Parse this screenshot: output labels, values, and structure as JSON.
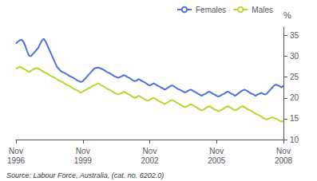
{
  "chart_data": {
    "type": "line",
    "y_label": "%",
    "annotation": "Source: Labour Force, Australia, (cat. no. 6202.0)",
    "ylim": [
      10,
      37
    ],
    "yticks": [
      10,
      15,
      20,
      25,
      30,
      35
    ],
    "grid": false,
    "legend": "upper right",
    "categories": [
      "Nov\n1996",
      null,
      null,
      null,
      null,
      null,
      null,
      null,
      null,
      null,
      null,
      null,
      null,
      null,
      null,
      null,
      null,
      null,
      null,
      null,
      null,
      null,
      null,
      null,
      null,
      null,
      null,
      null,
      null,
      null,
      null,
      null,
      null,
      null,
      null,
      null,
      "Nov\n1999",
      null,
      null,
      null,
      null,
      null,
      null,
      null,
      null,
      null,
      null,
      null,
      null,
      null,
      null,
      null,
      null,
      null,
      null,
      null,
      null,
      null,
      null,
      null,
      null,
      null,
      null,
      null,
      null,
      null,
      null,
      null,
      null,
      null,
      null,
      null,
      "Nov\n2002",
      null,
      null,
      null,
      null,
      null,
      null,
      null,
      null,
      null,
      null,
      null,
      null,
      null,
      null,
      null,
      null,
      null,
      null,
      null,
      null,
      null,
      null,
      null,
      null,
      null,
      null,
      null,
      null,
      null,
      null,
      null,
      null,
      null,
      null,
      null,
      "Nov\n2005",
      null,
      null,
      null,
      null,
      null,
      null,
      null,
      null,
      null,
      null,
      null,
      null,
      null,
      null,
      null,
      null,
      null,
      null,
      null,
      null,
      null,
      null,
      null,
      null,
      null,
      null,
      null,
      null,
      null,
      null,
      null,
      null,
      null,
      null,
      null,
      "Nov\n2008"
    ],
    "series": [
      {
        "name": "Females",
        "values": [
          33.0,
          33.5,
          33.8,
          34.0,
          33.5,
          32.5,
          31.2,
          30.2,
          30.0,
          30.5,
          31.0,
          31.5,
          32.0,
          33.0,
          33.8,
          34.2,
          33.5,
          32.5,
          31.5,
          30.5,
          29.5,
          28.5,
          27.5,
          27.0,
          26.5,
          26.2,
          26.0,
          25.8,
          25.5,
          25.2,
          25.0,
          24.8,
          24.5,
          24.2,
          24.0,
          23.8,
          24.0,
          24.5,
          25.0,
          25.5,
          26.0,
          26.5,
          27.0,
          27.2,
          27.3,
          27.2,
          27.0,
          26.8,
          26.5,
          26.2,
          26.0,
          25.8,
          25.5,
          25.2,
          25.0,
          24.8,
          25.0,
          25.2,
          25.5,
          25.3,
          25.0,
          24.8,
          24.5,
          24.2,
          24.0,
          24.2,
          24.5,
          24.3,
          24.0,
          23.8,
          23.5,
          23.2,
          23.0,
          23.2,
          23.5,
          23.3,
          23.0,
          22.8,
          22.5,
          22.3,
          22.0,
          22.2,
          22.5,
          22.8,
          23.0,
          22.8,
          22.5,
          22.2,
          22.0,
          21.8,
          21.5,
          21.3,
          21.5,
          21.8,
          22.0,
          21.8,
          21.5,
          21.3,
          21.0,
          20.8,
          20.5,
          20.8,
          21.0,
          21.3,
          21.5,
          21.3,
          21.0,
          20.8,
          20.5,
          20.3,
          20.5,
          20.8,
          21.0,
          21.3,
          21.5,
          21.3,
          21.0,
          20.8,
          20.5,
          20.8,
          21.2,
          21.5,
          21.8,
          22.0,
          21.8,
          21.5,
          21.2,
          21.0,
          20.8,
          20.5,
          20.8,
          21.0,
          21.2,
          21.0,
          20.8,
          21.0,
          21.5,
          22.0,
          22.5,
          23.0,
          23.2,
          23.0,
          22.8,
          22.5,
          23.0
        ]
      },
      {
        "name": "Males",
        "values": [
          27.0,
          27.2,
          27.5,
          27.3,
          27.0,
          26.8,
          26.5,
          26.2,
          26.5,
          26.8,
          27.0,
          27.2,
          27.0,
          26.8,
          26.5,
          26.2,
          26.0,
          25.8,
          25.5,
          25.2,
          25.0,
          24.8,
          24.5,
          24.2,
          24.0,
          23.8,
          23.5,
          23.2,
          23.0,
          22.8,
          22.5,
          22.2,
          22.0,
          21.8,
          21.5,
          21.2,
          21.5,
          21.8,
          22.0,
          22.3,
          22.5,
          22.8,
          23.0,
          23.2,
          23.5,
          23.3,
          23.0,
          22.8,
          22.5,
          22.2,
          22.0,
          21.8,
          21.5,
          21.2,
          21.0,
          20.8,
          21.0,
          21.2,
          21.5,
          21.3,
          21.0,
          20.8,
          20.5,
          20.2,
          20.0,
          20.2,
          20.5,
          20.3,
          20.0,
          19.8,
          19.5,
          19.3,
          19.5,
          19.8,
          20.0,
          19.8,
          19.5,
          19.2,
          19.0,
          18.8,
          18.5,
          18.8,
          19.0,
          19.3,
          19.5,
          19.3,
          19.0,
          18.8,
          18.5,
          18.2,
          18.0,
          17.8,
          18.0,
          18.2,
          18.5,
          18.3,
          18.0,
          17.8,
          17.5,
          17.2,
          17.0,
          17.2,
          17.5,
          17.8,
          18.0,
          17.8,
          17.5,
          17.2,
          17.0,
          16.8,
          17.0,
          17.2,
          17.5,
          17.8,
          18.0,
          17.8,
          17.5,
          17.2,
          17.0,
          17.2,
          17.5,
          17.8,
          18.0,
          17.8,
          17.5,
          17.2,
          17.0,
          16.8,
          16.5,
          16.2,
          16.0,
          15.8,
          15.5,
          15.2,
          15.0,
          14.8,
          15.0,
          15.2,
          15.3,
          15.2,
          15.0,
          14.8,
          14.5,
          14.3,
          14.5
        ]
      }
    ]
  }
}
